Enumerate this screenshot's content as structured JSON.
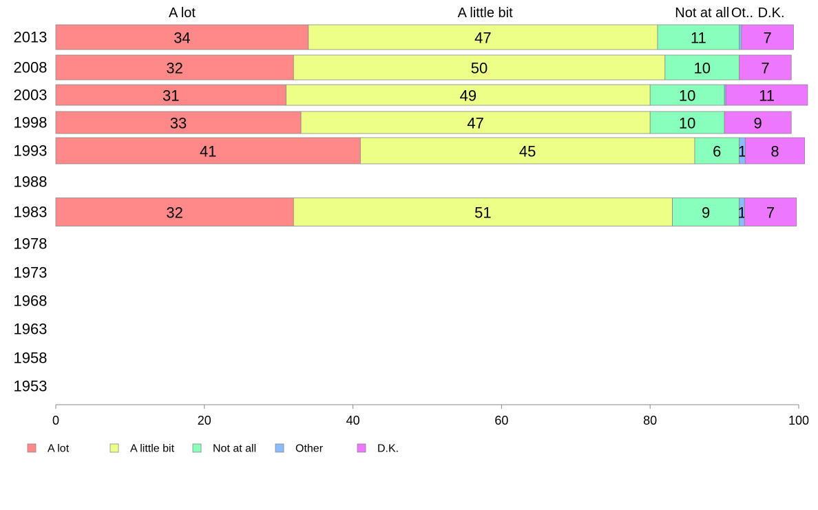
{
  "chart_data": {
    "type": "bar",
    "orientation": "horizontal",
    "stacked": true,
    "categories": [
      "2013",
      "2008",
      "2003",
      "1998",
      "1993",
      "1988",
      "1983",
      "1978",
      "1973",
      "1968",
      "1963",
      "1958",
      "1953"
    ],
    "series": [
      {
        "name": "A lot",
        "color": "#ff8888",
        "values": [
          34,
          32,
          31,
          33,
          41,
          null,
          32,
          null,
          null,
          null,
          null,
          null,
          null
        ]
      },
      {
        "name": "A little bit",
        "color": "#eeff88",
        "values": [
          47,
          50,
          49,
          47,
          45,
          null,
          51,
          null,
          null,
          null,
          null,
          null,
          null
        ]
      },
      {
        "name": "Not at all",
        "color": "#88ffbb",
        "values": [
          11,
          10,
          10,
          10,
          6,
          null,
          9,
          null,
          null,
          null,
          null,
          null,
          null
        ]
      },
      {
        "name": "Other",
        "color": "#88bbff",
        "values": [
          0.3,
          0,
          0.2,
          0,
          0.8,
          null,
          0.7,
          null,
          null,
          null,
          null,
          null,
          null
        ]
      },
      {
        "name": "D.K.",
        "color": "#ee77ff",
        "values": [
          7,
          7,
          11,
          9,
          8,
          null,
          7,
          null,
          null,
          null,
          null,
          null,
          null
        ]
      }
    ],
    "data_labels": [
      [
        "34",
        "47",
        "11",
        "",
        "7"
      ],
      [
        "32",
        "50",
        "10",
        "",
        "7"
      ],
      [
        "31",
        "49",
        "10",
        "",
        "11"
      ],
      [
        "33",
        "47",
        "10",
        "",
        "9"
      ],
      [
        "41",
        "45",
        "6",
        "1",
        "8"
      ],
      null,
      [
        "32",
        "51",
        "9",
        "1",
        "7"
      ],
      null,
      null,
      null,
      null,
      null,
      null
    ],
    "top_labels": [
      {
        "text": "A lot",
        "x": 17
      },
      {
        "text": "A little bit",
        "x": 57.8
      },
      {
        "text": "Not at all",
        "x": 87
      },
      {
        "text": "Ot..",
        "x": 92.4
      },
      {
        "text": "D.K.",
        "x": 96.3
      }
    ],
    "xlim": [
      0,
      100
    ],
    "xticks": [
      "0",
      "20",
      "40",
      "60",
      "80",
      "100"
    ],
    "legend_position": "bottom-left",
    "grid": false,
    "xlabel": "",
    "ylabel": "",
    "title": ""
  }
}
